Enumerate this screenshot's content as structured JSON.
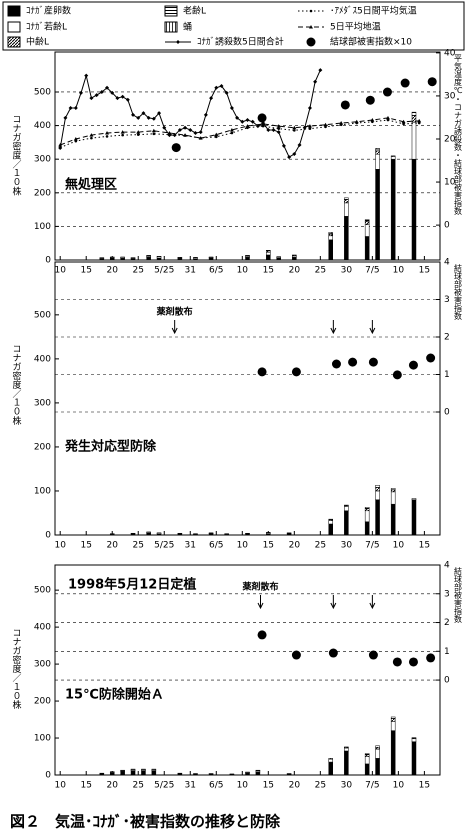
{
  "figure_caption": "図２　気温･ｺﾅｶﾞ･被害指数の推移と防除",
  "chart_data": [
    {
      "type": "combo",
      "labels": [
        "無処理区"
      ],
      "ylabel": "コナガ密度／１０株",
      "y2label": "平気温度℃・コナガ誘殺数・結球部被害指数",
      "ylim": [
        0,
        619
      ],
      "yticks": [
        0,
        100,
        200,
        300,
        400,
        500
      ],
      "y2lim": [
        -8.1,
        40.2
      ],
      "y2ticks": [
        0,
        10,
        20,
        30,
        40
      ],
      "grid": "y",
      "xlim": [
        -1,
        73
      ],
      "xticks": [
        {
          "value": 0,
          "label": "10"
        },
        {
          "value": 5,
          "label": "15"
        },
        {
          "value": 10,
          "label": "20"
        },
        {
          "value": 15,
          "label": "25"
        },
        {
          "value": 20,
          "label": "5/25"
        },
        {
          "value": 25,
          "label": "31"
        },
        {
          "value": 30,
          "label": "6/5"
        },
        {
          "value": 35,
          "label": "10"
        },
        {
          "value": 40,
          "label": "15"
        },
        {
          "value": 45,
          "label": "20"
        },
        {
          "value": 50,
          "label": "25"
        },
        {
          "value": 55,
          "label": "30"
        },
        {
          "value": 60,
          "label": "7/5"
        },
        {
          "value": 65,
          "label": "10"
        },
        {
          "value": 70,
          "label": "15"
        }
      ],
      "x": [
        8,
        10,
        12,
        14,
        17,
        19,
        23,
        26,
        29,
        36,
        40,
        42,
        45,
        52,
        55,
        59,
        61,
        64,
        68
      ],
      "series": [
        {
          "name": "ｺﾅｶﾞ産卵数",
          "type": "bar",
          "color": "#000000",
          "values": [
            4,
            6,
            5,
            4,
            8,
            6,
            5,
            4,
            6,
            8,
            15,
            6,
            8,
            60,
            130,
            70,
            270,
            300,
            300
          ]
        },
        {
          "name": "ｺﾅｶﾞ若齢L",
          "type": "bar",
          "color": "#ffffff",
          "values": [
            2,
            2,
            3,
            2,
            3,
            4,
            2,
            3,
            2,
            3,
            8,
            3,
            4,
            12,
            40,
            35,
            45,
            8,
            110
          ]
        },
        {
          "name": "中齢L",
          "type": "bar",
          "color": "#777777",
          "pattern": "diagonal",
          "values": [
            1,
            1,
            1,
            1,
            2,
            1,
            1,
            1,
            1,
            2,
            4,
            1,
            2,
            5,
            10,
            10,
            10,
            2,
            20
          ]
        },
        {
          "name": "老齢L",
          "type": "bar",
          "color": "#aaaaaa",
          "pattern": "horizontal",
          "values": [
            0,
            0,
            0,
            0,
            1,
            0,
            0,
            0,
            0,
            1,
            2,
            0,
            1,
            2,
            5,
            5,
            5,
            0,
            10
          ]
        },
        {
          "name": "蛹",
          "type": "bar",
          "color": "#dddddd",
          "pattern": "vertical",
          "values": [
            0,
            0,
            0,
            0,
            0,
            0,
            0,
            0,
            0,
            0,
            0,
            0,
            0,
            3,
            0,
            0,
            2,
            0,
            0
          ]
        },
        {
          "name": "･ｱﾒﾀﾞｽ5日間平均気温",
          "type": "line",
          "axis": "y2",
          "color": "#000000",
          "style": "dotted",
          "marker": "dot",
          "x": [
            0,
            3,
            6,
            9,
            12,
            15,
            18,
            21,
            24,
            27,
            30,
            33,
            36,
            39,
            42,
            45,
            48,
            51,
            54,
            57,
            60,
            63,
            66,
            69
          ],
          "values": [
            18.0,
            19.5,
            20.2,
            20.6,
            20.9,
            21.0,
            21.2,
            21.0,
            20.8,
            20.2,
            20.5,
            21.4,
            22.6,
            23.0,
            22.4,
            22.0,
            22.4,
            22.8,
            23.3,
            23.7,
            24.0,
            24.4,
            23.5,
            23.7
          ]
        },
        {
          "name": "5日平均地温",
          "type": "line",
          "axis": "y2",
          "color": "#000000",
          "style": "dashed",
          "marker": "triangle",
          "x": [
            0,
            3,
            6,
            9,
            12,
            15,
            18,
            21,
            24,
            27,
            30,
            33,
            36,
            39,
            42,
            45,
            48,
            51,
            54,
            57,
            60,
            63,
            66,
            69
          ],
          "values": [
            18.6,
            20.0,
            20.9,
            21.4,
            21.6,
            21.6,
            21.9,
            21.4,
            20.9,
            20.2,
            21.0,
            22.1,
            23.0,
            23.5,
            23.0,
            22.6,
            23.0,
            23.3,
            23.7,
            24.0,
            24.4,
            24.9,
            24.0,
            24.2
          ]
        },
        {
          "name": "ｺﾅｶﾞ誘殺数5日間合計",
          "type": "line",
          "axis": "y2",
          "color": "#000000",
          "style": "solid",
          "marker": "diamond",
          "x": [
            0,
            1,
            2,
            3,
            4,
            5,
            6,
            7,
            8,
            9,
            10,
            11,
            12,
            13,
            14,
            15,
            16,
            17,
            18,
            19,
            20,
            21,
            22,
            23,
            24,
            25,
            26,
            27,
            28,
            29,
            30,
            31,
            32,
            33,
            34,
            35,
            36,
            37,
            38,
            39,
            40,
            41,
            42,
            43,
            44,
            45,
            46,
            47,
            48,
            49,
            50
          ],
          "values": [
            17.9,
            24.9,
            27.2,
            27.2,
            30.7,
            34.7,
            29.5,
            30.2,
            30.9,
            31.9,
            30.7,
            29.5,
            29.8,
            29.1,
            25.6,
            24.9,
            26.0,
            24.9,
            24.7,
            26.0,
            22.6,
            20.9,
            20.9,
            22.1,
            22.6,
            22.1,
            21.4,
            21.6,
            25.6,
            29.5,
            31.9,
            32.3,
            30.7,
            27.2,
            24.9,
            24.0,
            24.4,
            24.0,
            23.0,
            23.7,
            22.1,
            22.1,
            21.6,
            18.4,
            15.8,
            16.5,
            18.6,
            22.6,
            27.2,
            33.3,
            36.0
          ]
        },
        {
          "name": "結球部被害指数×10",
          "type": "scatter",
          "axis": "y2",
          "color": "#000000",
          "marker": "circle",
          "x": [
            22.3,
            38.8,
            54.8,
            59.6,
            62.9,
            66.3,
            71.5
          ],
          "values": [
            18.0,
            24.9,
            27.9,
            29.0,
            30.9,
            33.0,
            33.3
          ]
        }
      ]
    },
    {
      "type": "combo",
      "labels": [
        "発生対応型防除"
      ],
      "ylabel": "コナガ密度／１０株",
      "y2label": "結球部被害指数",
      "ylim": [
        0,
        620
      ],
      "yticks": [
        0,
        100,
        200,
        300,
        400,
        500
      ],
      "y2lim": [
        -3.28,
        4
      ],
      "y2ticks": [
        0,
        1,
        2,
        3,
        4
      ],
      "grid": "y2",
      "xlim": [
        -1,
        73
      ],
      "xticks": [
        {
          "value": 0,
          "label": "10"
        },
        {
          "value": 5,
          "label": "15"
        },
        {
          "value": 10,
          "label": "20"
        },
        {
          "value": 15,
          "label": "25"
        },
        {
          "value": 20,
          "label": "5/25"
        },
        {
          "value": 25,
          "label": "31"
        },
        {
          "value": 30,
          "label": "6/5"
        },
        {
          "value": 35,
          "label": "10"
        },
        {
          "value": 40,
          "label": "15"
        },
        {
          "value": 45,
          "label": "20"
        },
        {
          "value": 50,
          "label": "25"
        },
        {
          "value": 55,
          "label": "30"
        },
        {
          "value": 60,
          "label": "7/5"
        },
        {
          "value": 65,
          "label": "10"
        },
        {
          "value": 70,
          "label": "15"
        }
      ],
      "annotation": {
        "text": "薬剤散布",
        "x": [
          22,
          52.5,
          60
        ]
      },
      "x": [
        10,
        14,
        17,
        19,
        23,
        26,
        29,
        32,
        36,
        40,
        44,
        52,
        55,
        59,
        61,
        64,
        68
      ],
      "series": [
        {
          "type": "bar",
          "color": "#000000",
          "values": [
            2,
            3,
            4,
            3,
            3,
            2,
            3,
            2,
            3,
            3,
            4,
            25,
            55,
            30,
            80,
            70,
            80
          ]
        },
        {
          "type": "bar",
          "color": "#ffffff",
          "values": [
            1,
            1,
            2,
            2,
            1,
            1,
            1,
            1,
            1,
            2,
            1,
            8,
            10,
            25,
            20,
            28,
            3
          ]
        },
        {
          "type": "bar",
          "color": "#777777",
          "pattern": "diagonal",
          "values": [
            0,
            0,
            1,
            0,
            0,
            0,
            1,
            0,
            0,
            1,
            0,
            2,
            2,
            5,
            8,
            5,
            0
          ]
        },
        {
          "type": "bar",
          "color": "#aaaaaa",
          "pattern": "horizontal",
          "values": [
            0,
            0,
            0,
            0,
            0,
            0,
            0,
            0,
            0,
            0,
            0,
            1,
            1,
            3,
            5,
            3,
            0
          ]
        },
        {
          "type": "bar",
          "color": "#dddddd",
          "pattern": "vertical",
          "values": [
            0,
            0,
            0,
            0,
            0,
            0,
            0,
            0,
            0,
            0,
            0,
            0,
            0,
            0,
            0,
            0,
            0
          ]
        },
        {
          "type": "scatter",
          "axis": "y2",
          "color": "#000000",
          "marker": "circle",
          "x": [
            38.8,
            45.4,
            53.1,
            56.2,
            60.2,
            64.8,
            67.9,
            71.2
          ],
          "values": [
            1.07,
            1.07,
            1.28,
            1.33,
            1.33,
            0.99,
            1.25,
            1.44
          ]
        }
      ]
    },
    {
      "type": "combo",
      "labels": [
        "1998年5月12日定植",
        "15℃防除開始Ａ"
      ],
      "ylabel": "コナガ密度／１０株",
      "y2label": "結球部被害指数",
      "ylim": [
        0,
        568
      ],
      "yticks": [
        0,
        100,
        200,
        300,
        400,
        500
      ],
      "y2lim": [
        -3.3,
        4
      ],
      "y2ticks": [
        0,
        1,
        2,
        3,
        4
      ],
      "grid": "y2",
      "xlim": [
        -1,
        73
      ],
      "xticks": [
        {
          "value": 0,
          "label": "10"
        },
        {
          "value": 5,
          "label": "15"
        },
        {
          "value": 10,
          "label": "20"
        },
        {
          "value": 15,
          "label": "25"
        },
        {
          "value": 20,
          "label": "5/25"
        },
        {
          "value": 25,
          "label": "31"
        },
        {
          "value": 30,
          "label": "6/5"
        },
        {
          "value": 35,
          "label": "10"
        },
        {
          "value": 40,
          "label": "15"
        },
        {
          "value": 45,
          "label": "20"
        },
        {
          "value": 50,
          "label": "25"
        },
        {
          "value": 55,
          "label": "30"
        },
        {
          "value": 60,
          "label": "7/5"
        },
        {
          "value": 65,
          "label": "10"
        },
        {
          "value": 70,
          "label": "15"
        }
      ],
      "annotation": {
        "text": "薬剤散布",
        "x": [
          38.5,
          52.5,
          60
        ]
      },
      "x": [
        8,
        10,
        12,
        14,
        16,
        18,
        23,
        26,
        29,
        33,
        36,
        38,
        44,
        52,
        55,
        59,
        61,
        64,
        68
      ],
      "series": [
        {
          "type": "bar",
          "color": "#000000",
          "values": [
            4,
            6,
            10,
            12,
            12,
            12,
            4,
            3,
            3,
            2,
            5,
            8,
            3,
            35,
            65,
            30,
            45,
            120,
            90
          ]
        },
        {
          "type": "bar",
          "color": "#ffffff",
          "values": [
            1,
            2,
            2,
            3,
            3,
            3,
            1,
            1,
            1,
            1,
            2,
            3,
            1,
            8,
            8,
            20,
            25,
            25,
            8
          ]
        },
        {
          "type": "bar",
          "color": "#777777",
          "pattern": "diagonal",
          "values": [
            0,
            1,
            1,
            1,
            1,
            1,
            0,
            0,
            0,
            0,
            1,
            1,
            0,
            2,
            2,
            5,
            5,
            8,
            2
          ]
        },
        {
          "type": "bar",
          "color": "#aaaaaa",
          "pattern": "horizontal",
          "values": [
            0,
            0,
            0,
            0,
            0,
            0,
            0,
            0,
            0,
            0,
            0,
            1,
            0,
            0,
            1,
            3,
            4,
            4,
            1
          ]
        },
        {
          "type": "bar",
          "color": "#dddddd",
          "pattern": "vertical",
          "values": [
            0,
            0,
            0,
            0,
            0,
            0,
            0,
            0,
            0,
            0,
            0,
            0,
            0,
            0,
            0,
            0,
            0,
            0,
            0
          ]
        },
        {
          "type": "scatter",
          "axis": "y2",
          "color": "#000000",
          "marker": "circle",
          "x": [
            38.8,
            45.4,
            52.5,
            60.2,
            64.8,
            67.9,
            71.2
          ],
          "values": [
            1.57,
            0.87,
            0.94,
            0.87,
            0.63,
            0.63,
            0.77
          ]
        }
      ]
    }
  ]
}
